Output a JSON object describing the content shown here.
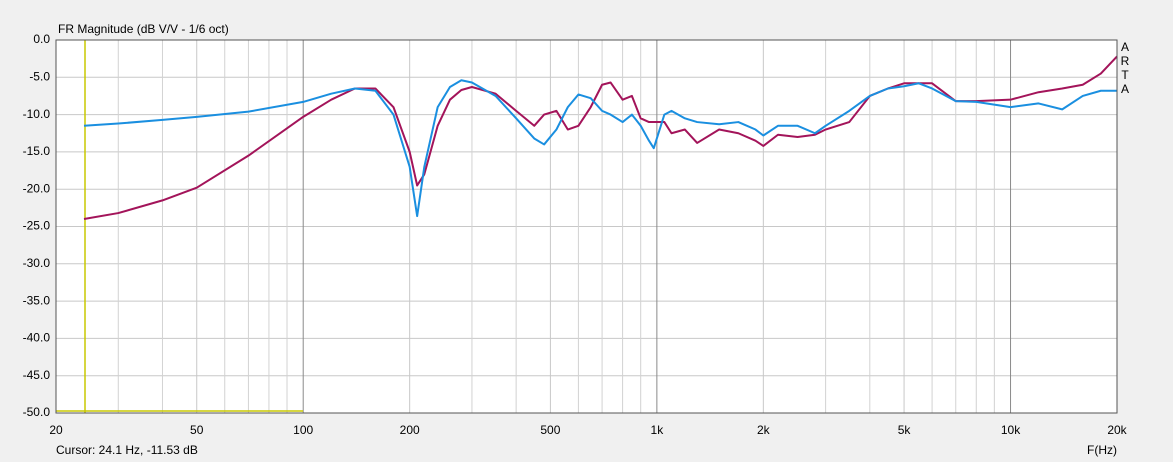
{
  "chart_data": {
    "type": "line",
    "title": "FR Magnitude (dB V/V - 1/6 oct)",
    "x_label": "F(Hz)",
    "annotation": "Cursor: 24.1 Hz, -11.53 dB",
    "watermark": "ARTA",
    "x_scale": "log",
    "grid": true,
    "x": [
      24,
      30,
      40,
      50,
      70,
      100,
      120,
      140,
      160,
      180,
      200,
      210,
      220,
      240,
      260,
      280,
      300,
      350,
      400,
      450,
      480,
      520,
      560,
      600,
      650,
      700,
      740,
      800,
      850,
      900,
      950,
      980,
      1050,
      1100,
      1200,
      1300,
      1500,
      1700,
      1900,
      2000,
      2200,
      2500,
      2800,
      3000,
      3500,
      4000,
      4500,
      5000,
      5500,
      6000,
      7000,
      8000,
      10000,
      12000,
      14000,
      16000,
      18000,
      20000
    ],
    "series": [
      {
        "color": "#a3145a",
        "values": [
          -24,
          -23.2,
          -21.5,
          -19.8,
          -15.5,
          -10.3,
          -8,
          -6.5,
          -6.5,
          -9,
          -15,
          -19.5,
          -18,
          -11.5,
          -8,
          -6.7,
          -6.3,
          -7.2,
          -9.5,
          -11.5,
          -10,
          -9.5,
          -12,
          -11.5,
          -9,
          -6,
          -5.7,
          -8,
          -7.5,
          -10.5,
          -11,
          -11,
          -11,
          -12.5,
          -12,
          -13.8,
          -12,
          -12.5,
          -13.5,
          -14.2,
          -12.7,
          -13,
          -12.7,
          -12,
          -11,
          -7.5,
          -6.5,
          -5.8,
          -5.8,
          -5.8,
          -8.2,
          -8.2,
          -8,
          -7,
          -6.5,
          -6,
          -4.5,
          -2.2
        ]
      },
      {
        "color": "#1a8fe0",
        "values": [
          -11.5,
          -11.2,
          -10.7,
          -10.3,
          -9.6,
          -8.3,
          -7.2,
          -6.5,
          -6.8,
          -10,
          -17,
          -23.6,
          -17,
          -9,
          -6.3,
          -5.4,
          -5.7,
          -7.5,
          -10.5,
          -13.2,
          -14,
          -12,
          -9,
          -7.3,
          -7.8,
          -9.5,
          -10,
          -11,
          -10,
          -11.5,
          -13.5,
          -14.5,
          -10,
          -9.5,
          -10.5,
          -11,
          -11.3,
          -11,
          -12,
          -12.8,
          -11.5,
          -11.5,
          -12.5,
          -11.5,
          -9.5,
          -7.5,
          -6.5,
          -6.2,
          -5.8,
          -6.5,
          -8.2,
          -8.3,
          -9,
          -8.5,
          -9.3,
          -7.5,
          -6.8,
          -6.8
        ]
      }
    ],
    "xlim": [
      20,
      20000
    ],
    "xticks": [
      20,
      50,
      100,
      200,
      500,
      {
        "value": 1000,
        "label": "1k"
      },
      {
        "value": 2000,
        "label": "2k"
      },
      {
        "value": 5000,
        "label": "5k"
      },
      {
        "value": 10000,
        "label": "10k"
      },
      {
        "value": 20000,
        "label": "20k"
      }
    ],
    "xminor": [
      30,
      40,
      60,
      70,
      80,
      90,
      300,
      400,
      600,
      700,
      800,
      900,
      3000,
      4000,
      6000,
      7000,
      8000,
      9000
    ],
    "ylim": [
      -50,
      0
    ],
    "yticks": [
      {
        "value": 0,
        "label": "0.0"
      },
      {
        "value": -5,
        "label": "-5.0"
      },
      {
        "value": -10,
        "label": "-10.0"
      },
      {
        "value": -15,
        "label": "-15.0"
      },
      {
        "value": -20,
        "label": "-20.0"
      },
      {
        "value": -25,
        "label": "-25.0"
      },
      {
        "value": -30,
        "label": "-30.0"
      },
      {
        "value": -35,
        "label": "-35.0"
      },
      {
        "value": -40,
        "label": "-40.0"
      },
      {
        "value": -45,
        "label": "-45.0"
      },
      {
        "value": -50,
        "label": "-50.0"
      }
    ]
  }
}
